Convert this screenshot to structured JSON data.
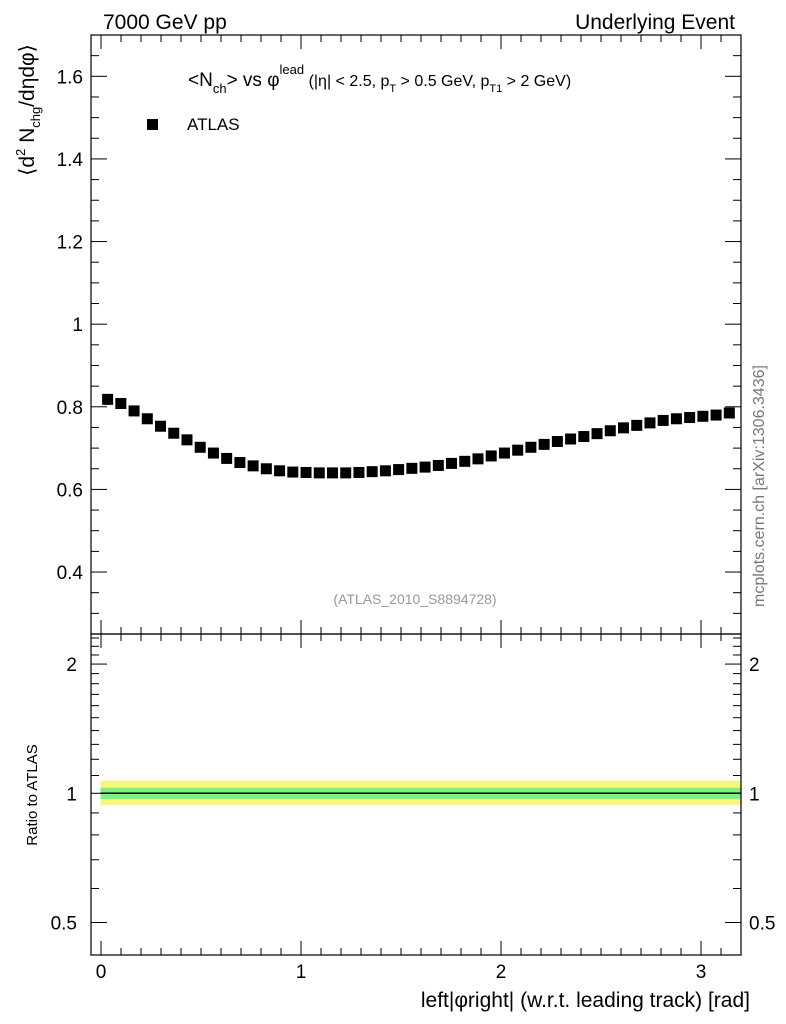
{
  "header": {
    "left": "7000 GeV pp",
    "right": "Underlying Event"
  },
  "watermark": "mcplots.cern.ch [arXiv:1306.3436]",
  "analysis_id": "(ATLAS_2010_S8894728)",
  "chart_data": [
    {
      "type": "scatter",
      "title_main": "<N",
      "title_sub": "ch",
      "title_mid": "> vs φ",
      "title_sup": "lead",
      "title_cut1": " (|η| < 2.5, p",
      "title_cut1_sub": "T",
      "title_cut2": " > 0.5 GeV, p",
      "title_cut2_sub": "T1",
      "title_cut3": " > 2 GeV)",
      "ylabel": "⟨d² Nₕₖ₉/dηdφ⟩",
      "ylabel_parts": {
        "a": "⟨d",
        "b": "2",
        "c": " N",
        "d": "chg",
        "e": "/dηdφ⟩"
      },
      "xlim": [
        -0.05,
        3.2
      ],
      "ylim": [
        0.25,
        1.7
      ],
      "ytick_labels": [
        "0.4",
        "0.6",
        "0.8",
        "1",
        "1.2",
        "1.4",
        "1.6"
      ],
      "ytick_values": [
        0.4,
        0.6,
        0.8,
        1.0,
        1.2,
        1.4,
        1.6
      ],
      "legend_position": "top-left",
      "series": [
        {
          "name": "ATLAS",
          "color": "#000000",
          "x": [
            0.0331,
            0.0992,
            0.1653,
            0.2315,
            0.2976,
            0.3638,
            0.4299,
            0.496,
            0.5622,
            0.6283,
            0.6945,
            0.7606,
            0.8267,
            0.8929,
            0.959,
            1.0252,
            1.0913,
            1.1574,
            1.2236,
            1.2897,
            1.3559,
            1.422,
            1.4881,
            1.5543,
            1.6204,
            1.6866,
            1.7527,
            1.8188,
            1.885,
            1.9511,
            2.0173,
            2.0834,
            2.1495,
            2.2157,
            2.2818,
            2.348,
            2.4141,
            2.4802,
            2.5464,
            2.6125,
            2.6787,
            2.7448,
            2.8109,
            2.8771,
            2.9432,
            3.0094,
            3.0755,
            3.1416
          ],
          "y": [
            0.818,
            0.808,
            0.79,
            0.771,
            0.753,
            0.736,
            0.72,
            0.702,
            0.688,
            0.675,
            0.665,
            0.657,
            0.65,
            0.645,
            0.642,
            0.641,
            0.64,
            0.64,
            0.64,
            0.641,
            0.643,
            0.645,
            0.648,
            0.651,
            0.654,
            0.658,
            0.663,
            0.668,
            0.674,
            0.681,
            0.688,
            0.695,
            0.702,
            0.709,
            0.716,
            0.722,
            0.728,
            0.735,
            0.742,
            0.749,
            0.755,
            0.761,
            0.767,
            0.771,
            0.774,
            0.777,
            0.78,
            0.785
          ]
        }
      ]
    },
    {
      "type": "line",
      "ylabel": "Ratio to ATLAS",
      "xlabel": "left|φright| (w.r.t. leading track) [rad]",
      "xlim": [
        -0.05,
        3.2
      ],
      "ylim": [
        0.42,
        2.35
      ],
      "log_y": true,
      "xtick_labels": [
        "0",
        "1",
        "2",
        "3"
      ],
      "xtick_values": [
        0,
        1,
        2,
        3
      ],
      "ytick_labels": [
        "0.5",
        "1",
        "2"
      ],
      "ytick_values": [
        0.5,
        1,
        2
      ],
      "series": [
        {
          "name": "ATLAS",
          "x": [
            0.0,
            3.1416
          ],
          "y": [
            1.0,
            1.0
          ],
          "bands": {
            "inner": [
              0.97,
              1.03
            ],
            "outer": [
              0.94,
              1.07
            ]
          },
          "colors": {
            "line": "#000000",
            "inner_band": "#80f080",
            "outer_band": "#f7f77c"
          }
        }
      ]
    }
  ]
}
